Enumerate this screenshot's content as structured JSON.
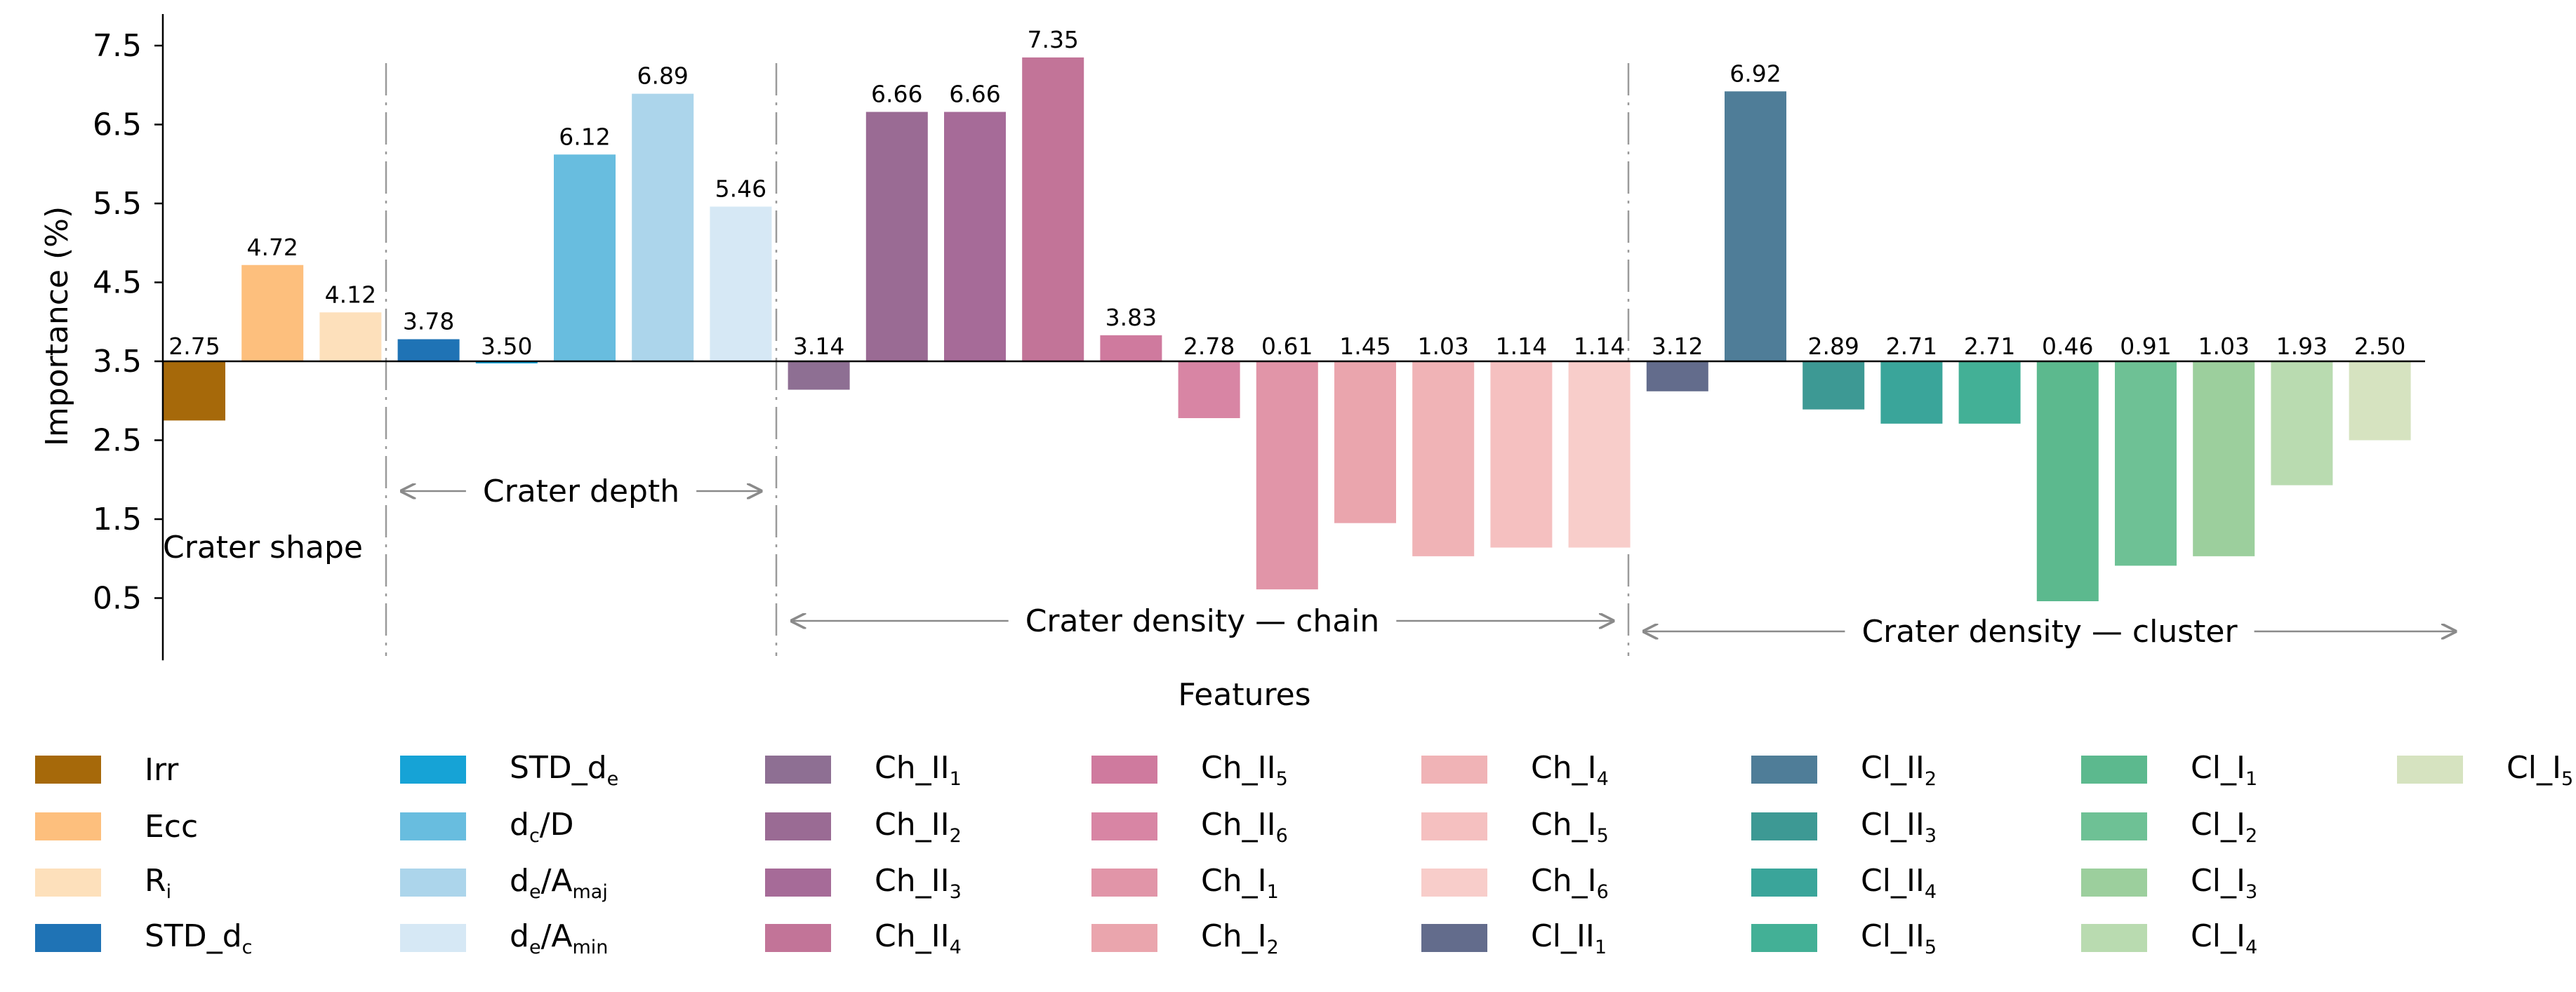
{
  "chart_data": {
    "type": "bar",
    "ylabel": "Importance (%)",
    "xlabel": "Features",
    "baseline": 3.5,
    "yticks": [
      "7.5",
      "6.5",
      "5.5",
      "4.5",
      "3.5",
      "2.5",
      "1.5",
      "0.5"
    ],
    "ytick_values": [
      7.5,
      6.5,
      5.5,
      4.5,
      3.5,
      2.5,
      1.5,
      0.5
    ],
    "ylim": [
      -0.2,
      7.9
    ],
    "groups": [
      {
        "label": "Crater shape",
        "arrows": "none"
      },
      {
        "label": "Crater depth",
        "arrows": "both"
      },
      {
        "label": "Crater density — chain",
        "arrows": "both"
      },
      {
        "label": "Crater density — cluster",
        "arrows": "both"
      }
    ],
    "bars": [
      {
        "name": "Irr",
        "value": 2.75,
        "label": "2.75",
        "group": 0,
        "color": "#a6690a"
      },
      {
        "name": "Ecc",
        "value": 4.72,
        "label": "4.72",
        "group": 0,
        "color": "#fdbf7d"
      },
      {
        "name": "Ri",
        "value": 4.12,
        "label": "4.12",
        "group": 0,
        "color": "#fde0bb"
      },
      {
        "name": "STD_dc",
        "value": 3.78,
        "label": "3.78",
        "group": 1,
        "color": "#1f73b5"
      },
      {
        "name": "STD_de",
        "value": 3.5,
        "label": "3.50",
        "group": 1,
        "color": "#16a3d6"
      },
      {
        "name": "dc/D",
        "value": 6.12,
        "label": "6.12",
        "group": 1,
        "color": "#68bddf"
      },
      {
        "name": "de/Amaj",
        "value": 6.89,
        "label": "6.89",
        "group": 1,
        "color": "#acd5eb"
      },
      {
        "name": "de/Amin",
        "value": 5.46,
        "label": "5.46",
        "group": 1,
        "color": "#d6e8f5"
      },
      {
        "name": "Ch_II1",
        "value": 3.14,
        "label": "3.14",
        "group": 2,
        "color": "#8e6f93"
      },
      {
        "name": "Ch_II2",
        "value": 6.66,
        "label": "6.66",
        "group": 2,
        "color": "#9a6b94"
      },
      {
        "name": "Ch_II3",
        "value": 6.66,
        "label": "6.66",
        "group": 2,
        "color": "#a66b98"
      },
      {
        "name": "Ch_II4",
        "value": 7.35,
        "label": "7.35",
        "group": 2,
        "color": "#c27498"
      },
      {
        "name": "Ch_II5",
        "value": 3.83,
        "label": "3.83",
        "group": 2,
        "color": "#cf7a9e"
      },
      {
        "name": "Ch_II6",
        "value": 2.78,
        "label": "2.78",
        "group": 2,
        "color": "#d885a4"
      },
      {
        "name": "Ch_I1",
        "value": 0.61,
        "label": "0.61",
        "group": 2,
        "color": "#e195a8"
      },
      {
        "name": "Ch_I2",
        "value": 1.45,
        "label": "1.45",
        "group": 2,
        "color": "#eaa5ad"
      },
      {
        "name": "Ch_I4",
        "value": 1.03,
        "label": "1.03",
        "group": 2,
        "color": "#f0b3b6"
      },
      {
        "name": "Ch_I5",
        "value": 1.14,
        "label": "1.14",
        "group": 2,
        "color": "#f5c0c0"
      },
      {
        "name": "Ch_I6",
        "value": 1.14,
        "label": "1.14",
        "group": 2,
        "color": "#f8cdca"
      },
      {
        "name": "Cl_II1",
        "value": 3.12,
        "label": "3.12",
        "group": 3,
        "color": "#636c8c"
      },
      {
        "name": "Cl_II2",
        "value": 6.92,
        "label": "6.92",
        "group": 3,
        "color": "#4f7d98"
      },
      {
        "name": "Cl_II3",
        "value": 2.89,
        "label": "2.89",
        "group": 3,
        "color": "#3d9994"
      },
      {
        "name": "Cl_II4",
        "value": 2.71,
        "label": "2.71",
        "group": 3,
        "color": "#3aa59a"
      },
      {
        "name": "Cl_II5",
        "value": 2.71,
        "label": "2.71",
        "group": 3,
        "color": "#43b096"
      },
      {
        "name": "Cl_I1",
        "value": 0.46,
        "label": "0.46",
        "group": 3,
        "color": "#5cb98e"
      },
      {
        "name": "Cl_I2",
        "value": 0.91,
        "label": "0.91",
        "group": 3,
        "color": "#6ec195"
      },
      {
        "name": "Cl_I3",
        "value": 1.03,
        "label": "1.03",
        "group": 3,
        "color": "#9ccf9d"
      },
      {
        "name": "Cl_I4",
        "value": 1.93,
        "label": "1.93",
        "group": 3,
        "color": "#b9dbb0"
      },
      {
        "name": "Cl_I5",
        "value": 2.5,
        "label": "2.50",
        "group": 3,
        "color": "#d6e3c0"
      }
    ]
  },
  "legend": {
    "columns": [
      [
        {
          "base": "Irr",
          "color": "#a6690a"
        },
        {
          "base": "Ecc",
          "color": "#fdbf7d"
        },
        {
          "base": "R",
          "sub": "i",
          "color": "#fde0bb"
        },
        {
          "base": "STD_d",
          "sub": "c",
          "color": "#1f73b5"
        }
      ],
      [
        {
          "base": "STD_d",
          "sub": "e",
          "color": "#16a3d6"
        },
        {
          "base": "d",
          "sub": "c",
          "tail": "/D",
          "color": "#68bddf"
        },
        {
          "base": "d",
          "sub": "e",
          "tail": "/A",
          "sub2": "maj",
          "color": "#acd5eb"
        },
        {
          "base": "d",
          "sub": "e",
          "tail": "/A",
          "sub2": "min",
          "color": "#d6e8f5"
        }
      ],
      [
        {
          "base": "Ch_II",
          "sub": "1",
          "color": "#8e6f93"
        },
        {
          "base": "Ch_II",
          "sub": "2",
          "color": "#9a6b94"
        },
        {
          "base": "Ch_II",
          "sub": "3",
          "color": "#a66b98"
        },
        {
          "base": "Ch_II",
          "sub": "4",
          "color": "#c27498"
        }
      ],
      [
        {
          "base": "Ch_II",
          "sub": "5",
          "color": "#cf7a9e"
        },
        {
          "base": "Ch_II",
          "sub": "6",
          "color": "#d885a4"
        },
        {
          "base": "Ch_I",
          "sub": "1",
          "color": "#e195a8"
        },
        {
          "base": "Ch_I",
          "sub": "2",
          "color": "#eaa5ad"
        }
      ],
      [
        {
          "base": "Ch_I",
          "sub": "4",
          "color": "#f0b3b6"
        },
        {
          "base": "Ch_I",
          "sub": "5",
          "color": "#f5c0c0"
        },
        {
          "base": "Ch_I",
          "sub": "6",
          "color": "#f8cdca"
        },
        {
          "base": "Cl_II",
          "sub": "1",
          "color": "#636c8c"
        }
      ],
      [
        {
          "base": "Cl_II",
          "sub": "2",
          "color": "#4f7d98"
        },
        {
          "base": "Cl_II",
          "sub": "3",
          "color": "#3d9994"
        },
        {
          "base": "Cl_II",
          "sub": "4",
          "color": "#3aa59a"
        },
        {
          "base": "Cl_II",
          "sub": "5",
          "color": "#43b096"
        }
      ],
      [
        {
          "base": "Cl_I",
          "sub": "1",
          "color": "#5cb98e"
        },
        {
          "base": "Cl_I",
          "sub": "2",
          "color": "#6ec195"
        },
        {
          "base": "Cl_I",
          "sub": "3",
          "color": "#9ccf9d"
        },
        {
          "base": "Cl_I",
          "sub": "4",
          "color": "#b9dbb0"
        }
      ],
      [
        {
          "base": "Cl_I",
          "sub": "5",
          "color": "#d6e3c0"
        }
      ]
    ]
  }
}
